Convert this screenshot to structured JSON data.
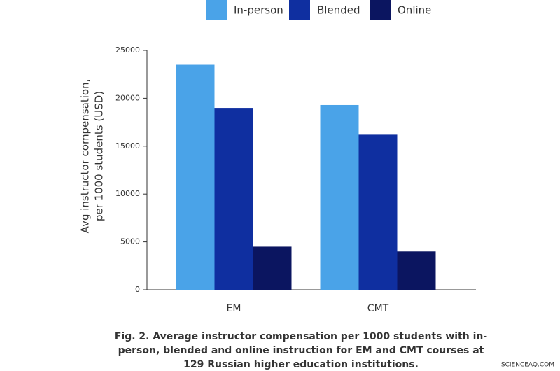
{
  "chart_data": {
    "type": "bar",
    "categories": [
      "EM",
      "CMT"
    ],
    "series": [
      {
        "name": "In-person",
        "color": "#4aa3e8",
        "values": [
          23500,
          19300
        ]
      },
      {
        "name": "Blended",
        "color": "#0f2fa0",
        "values": [
          19000,
          16200
        ]
      },
      {
        "name": "Online",
        "color": "#0b1560",
        "values": [
          4500,
          4000
        ]
      }
    ],
    "ylabel": [
      "Avg instructor compensation,",
      "per 1000 students (USD)"
    ],
    "ylim": [
      0,
      25000
    ],
    "yticks": [
      0,
      5000,
      10000,
      15000,
      20000,
      25000
    ],
    "legend": "top",
    "caption": [
      "Fig. 2. Average instructor compensation per 1000 students with in-",
      "person, blended and online instruction for EM and CMT courses at",
      "129 Russian higher education institutions."
    ],
    "watermark": "SCIENCEAQ.COM"
  }
}
